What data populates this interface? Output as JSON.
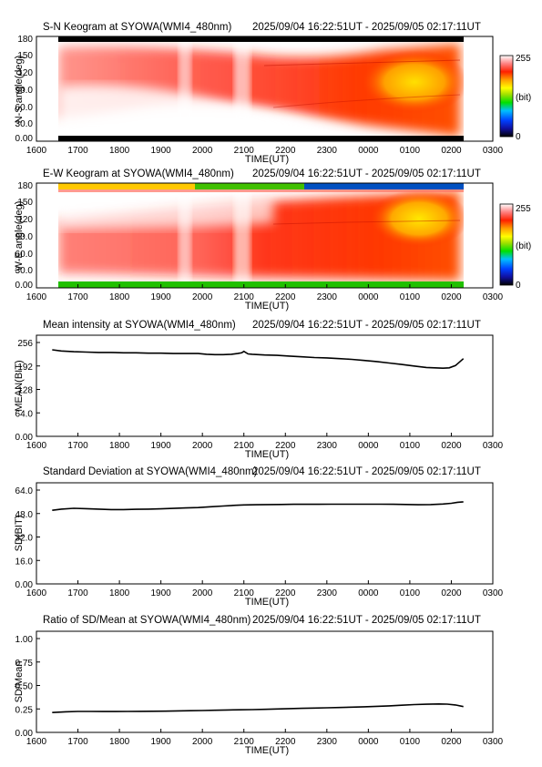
{
  "time_range": "2025/09/04 16:22:51UT - 2025/09/05 02:17:11UT",
  "x_ticks": [
    "1600",
    "1700",
    "1800",
    "1900",
    "2000",
    "2100",
    "2200",
    "2300",
    "0000",
    "0100",
    "0200",
    "0300"
  ],
  "x_label": "TIME(UT)",
  "colorbar": {
    "max_label": "255",
    "min_label": "0",
    "unit_label": "(bit)"
  },
  "chart_data": [
    {
      "type": "heatmap",
      "title": "S-N Keogram at SYOWA(WMI4_480nm)",
      "ylabel": "N-S angle(deg)",
      "yticks": [
        "0.00",
        "30.0",
        "60.0",
        "90.0",
        "120",
        "150",
        "180"
      ],
      "xlim": [
        16.0,
        27.0
      ],
      "ylim": [
        0,
        180
      ],
      "data_time_range": [
        16.38,
        26.29
      ],
      "colormap": [
        "#000000",
        "#1010a0",
        "#0040ff",
        "#00c0ff",
        "#00e000",
        "#a0e000",
        "#ffff00",
        "#ffa000",
        "#ff2000",
        "#ff8080",
        "#ffffff"
      ],
      "zlim": [
        0,
        255
      ]
    },
    {
      "type": "heatmap",
      "title": "E-W Keogram at SYOWA(WMI4_480nm)",
      "ylabel": "W-E angle(deg)",
      "yticks": [
        "0.00",
        "30.0",
        "60.0",
        "90.0",
        "120",
        "150",
        "180"
      ],
      "xlim": [
        16.0,
        27.0
      ],
      "ylim": [
        0,
        180
      ],
      "data_time_range": [
        16.38,
        26.29
      ],
      "zlim": [
        0,
        255
      ]
    },
    {
      "type": "line",
      "title": "Mean intensity at SYOWA(WMI4_480nm)",
      "ylabel": "MEAN(BIT)",
      "yticks": [
        "0.00",
        "64.0",
        "128",
        "192",
        "256"
      ],
      "xlim": [
        16.0,
        27.0
      ],
      "ylim": [
        0,
        256
      ],
      "x": [
        16.38,
        16.6,
        16.9,
        17.2,
        17.5,
        17.8,
        18.1,
        18.4,
        18.7,
        19.0,
        19.3,
        19.6,
        19.9,
        20.1,
        20.3,
        20.5,
        20.7,
        20.85,
        20.95,
        21.0,
        21.1,
        21.2,
        21.5,
        21.8,
        22.1,
        22.4,
        22.7,
        23.0,
        23.3,
        23.6,
        23.9,
        24.2,
        24.5,
        24.8,
        25.1,
        25.4,
        25.6,
        25.8,
        25.95,
        26.1,
        26.2,
        26.29
      ],
      "values": [
        236,
        233,
        231,
        230,
        229,
        229,
        228,
        228,
        227,
        227,
        226,
        226,
        226,
        224,
        223,
        223,
        224,
        226,
        228,
        232,
        225,
        224,
        222,
        221,
        219,
        217,
        215,
        214,
        212,
        210,
        207,
        204,
        200,
        196,
        192,
        188,
        187,
        186,
        187,
        193,
        203,
        212
      ],
      "line_color": "#000000"
    },
    {
      "type": "line",
      "title": "Standard Deviation at SYOWA(WMI4_480nm)",
      "ylabel": "SD(BIT)",
      "yticks": [
        "0.00",
        "16.0",
        "32.0",
        "48.0",
        "64.0"
      ],
      "xlim": [
        16.0,
        27.0
      ],
      "ylim": [
        0,
        64
      ],
      "x": [
        16.38,
        16.6,
        16.9,
        17.2,
        17.5,
        17.8,
        18.1,
        18.4,
        18.7,
        19.0,
        19.3,
        19.6,
        19.9,
        20.2,
        20.5,
        20.8,
        21.0,
        21.3,
        21.6,
        21.9,
        22.2,
        22.5,
        22.8,
        23.1,
        23.4,
        23.7,
        24.0,
        24.3,
        24.6,
        24.9,
        25.2,
        25.5,
        25.8,
        26.0,
        26.15,
        26.29
      ],
      "values": [
        50.2,
        51.0,
        51.6,
        51.3,
        51.0,
        50.7,
        50.7,
        50.9,
        51.0,
        51.2,
        51.5,
        51.8,
        52.1,
        52.6,
        53.1,
        53.6,
        53.9,
        54.0,
        54.1,
        54.2,
        54.3,
        54.3,
        54.3,
        54.4,
        54.4,
        54.4,
        54.4,
        54.4,
        54.3,
        54.2,
        54.0,
        54.1,
        54.5,
        55.0,
        55.7,
        56.0
      ],
      "line_color": "#000000"
    },
    {
      "type": "line",
      "title": "Ratio of SD/Mean at SYOWA(WMI4_480nm)",
      "ylabel": "SD/Mean",
      "yticks": [
        "0.00",
        "0.25",
        "0.50",
        "0.75",
        "1.00"
      ],
      "xlim": [
        16.0,
        27.0
      ],
      "ylim": [
        0,
        1.0
      ],
      "x": [
        16.38,
        16.7,
        17.0,
        17.3,
        17.6,
        17.9,
        18.2,
        18.5,
        18.8,
        19.1,
        19.4,
        19.7,
        20.0,
        20.3,
        20.6,
        20.9,
        21.2,
        21.5,
        21.8,
        22.1,
        22.4,
        22.7,
        23.0,
        23.3,
        23.6,
        23.9,
        24.2,
        24.5,
        24.8,
        25.1,
        25.4,
        25.7,
        25.9,
        26.1,
        26.29
      ],
      "values": [
        0.212,
        0.219,
        0.223,
        0.223,
        0.222,
        0.222,
        0.223,
        0.224,
        0.225,
        0.226,
        0.229,
        0.231,
        0.233,
        0.236,
        0.239,
        0.241,
        0.243,
        0.246,
        0.25,
        0.253,
        0.256,
        0.259,
        0.262,
        0.265,
        0.269,
        0.273,
        0.278,
        0.283,
        0.289,
        0.296,
        0.3,
        0.303,
        0.301,
        0.292,
        0.275
      ],
      "line_color": "#000000"
    }
  ]
}
